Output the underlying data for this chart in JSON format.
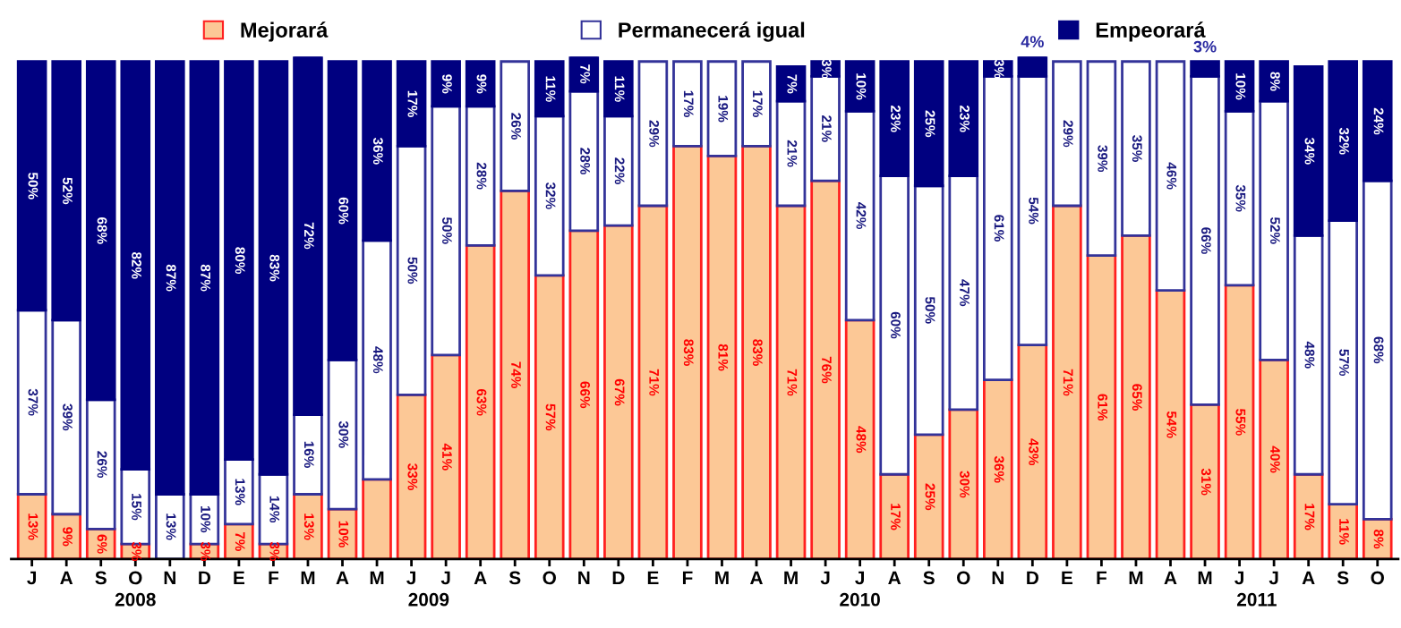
{
  "chart_data": {
    "type": "bar",
    "stacked": true,
    "legend": "top",
    "grid": false,
    "tick_labels": "x",
    "ylim": [
      0,
      101
    ],
    "categories": [
      "J",
      "A",
      "S",
      "O",
      "N",
      "D",
      "E",
      "F",
      "M",
      "A",
      "M",
      "J",
      "J",
      "A",
      "S",
      "O",
      "N",
      "D",
      "E",
      "F",
      "M",
      "A",
      "M",
      "J",
      "J",
      "A",
      "S",
      "O",
      "N",
      "D",
      "E",
      "F",
      "M",
      "A",
      "M",
      "J",
      "J",
      "A",
      "S",
      "O"
    ],
    "annotations": [
      "2008",
      "2009",
      "2010",
      "2011"
    ],
    "series": [
      {
        "name": "Mejorará",
        "color": "#fcc896",
        "values": [
          13,
          9,
          6,
          3,
          0,
          3,
          7,
          3,
          13,
          10,
          16,
          33,
          41,
          63,
          74,
          57,
          66,
          67,
          71,
          83,
          81,
          83,
          71,
          76,
          48,
          17,
          25,
          30,
          36,
          43,
          71,
          61,
          65,
          54,
          31,
          55,
          40,
          17,
          11,
          8
        ],
        "value_labels": [
          "13%",
          "9%",
          "6%",
          "3%",
          null,
          "3%",
          "7%",
          "3%",
          "13%",
          "10%",
          null,
          "33%",
          "41%",
          "63%",
          "74%",
          "57%",
          "66%",
          "67%",
          "71%",
          "83%",
          "81%",
          "83%",
          "71%",
          "76%",
          "48%",
          "17%",
          "25%",
          "30%",
          "36%",
          "43%",
          "71%",
          "61%",
          "65%",
          "54%",
          "31%",
          "55%",
          "40%",
          "17%",
          "11%",
          "8%"
        ]
      },
      {
        "name": "Permanecerá igual",
        "color": "#ffffff",
        "values": [
          37,
          39,
          26,
          15,
          13,
          10,
          13,
          14,
          16,
          30,
          48,
          50,
          50,
          28,
          26,
          32,
          28,
          22,
          29,
          17,
          19,
          17,
          21,
          21,
          42,
          60,
          50,
          47,
          61,
          54,
          29,
          39,
          35,
          46,
          66,
          35,
          52,
          48,
          57,
          68
        ],
        "value_labels": [
          "37%",
          "39%",
          "26%",
          "15%",
          "13%",
          "10%",
          "13%",
          "14%",
          "16%",
          "30%",
          "48%",
          "50%",
          "50%",
          "28%",
          "26%",
          "32%",
          "28%",
          "22%",
          "29%",
          "17%",
          "19%",
          "17%",
          "21%",
          "21%",
          "42%",
          "60%",
          "50%",
          "47%",
          "61%",
          "54%",
          "29%",
          "39%",
          "35%",
          "46%",
          "66%",
          "35%",
          "52%",
          "48%",
          "57%",
          "68%"
        ]
      },
      {
        "name": "Empeorará",
        "color": "#000080",
        "values": [
          50,
          52,
          68,
          82,
          87,
          87,
          80,
          83,
          72,
          60,
          36,
          17,
          9,
          9,
          0,
          11,
          7,
          11,
          0,
          0,
          0,
          0,
          7,
          3,
          10,
          23,
          25,
          23,
          3,
          4,
          0,
          0,
          0,
          0,
          3,
          10,
          8,
          34,
          32,
          24
        ],
        "value_labels": [
          "50%",
          "52%",
          "68%",
          "82%",
          "87%",
          "87%",
          "80%",
          "83%",
          "72%",
          "60%",
          "36%",
          "17%",
          "9%",
          "9%",
          null,
          "11%",
          "7%",
          "11%",
          null,
          null,
          null,
          null,
          "7%",
          "3%",
          "10%",
          "23%",
          "25%",
          "23%",
          "3%",
          "4%",
          null,
          null,
          null,
          null,
          "3%",
          "10%",
          "8%",
          "34%",
          "32%",
          "24%"
        ]
      }
    ]
  }
}
